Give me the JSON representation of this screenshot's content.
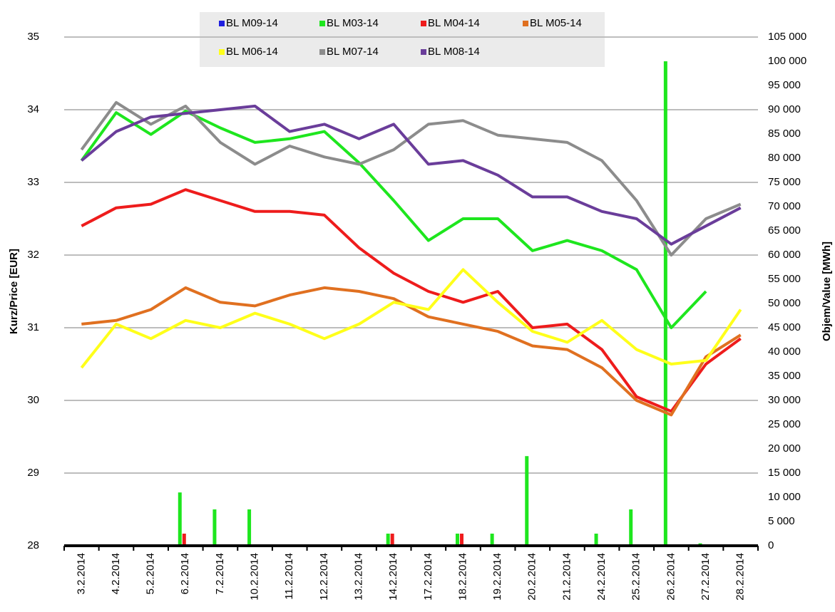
{
  "chart_data": {
    "type": "line-bar",
    "y_label": "Kurz/Price [EUR]",
    "y2_label": "Objem/Value [MWh]",
    "categories": [
      "3.2.2014",
      "4.2.2014",
      "5.2.2014",
      "6.2.2014",
      "7.2.2014",
      "10.2.2014",
      "11.2.2014",
      "12.2.2014",
      "13.2.2014",
      "14.2.2014",
      "17.2.2014",
      "18.2.2014",
      "19.2.2014",
      "20.2.2014",
      "21.2.2014",
      "24.2.2014",
      "25.2.2014",
      "26.2.2014",
      "27.2.2014",
      "28.2.2014"
    ],
    "ylim": [
      28,
      35
    ],
    "yticks": [
      28,
      29,
      30,
      31,
      32,
      33,
      34,
      35
    ],
    "y2lim": [
      0,
      105000
    ],
    "y2ticks": [
      0,
      {
        "value": 5000,
        "label": "5 000"
      },
      {
        "value": 10000,
        "label": "10 000"
      },
      {
        "value": 15000,
        "label": "15 000"
      },
      {
        "value": 20000,
        "label": "20 000"
      },
      {
        "value": 25000,
        "label": "25 000"
      },
      {
        "value": 30000,
        "label": "30 000"
      },
      {
        "value": 35000,
        "label": "35 000"
      },
      {
        "value": 40000,
        "label": "40 000"
      },
      {
        "value": 45000,
        "label": "45 000"
      },
      {
        "value": 50000,
        "label": "50 000"
      },
      {
        "value": 55000,
        "label": "55 000"
      },
      {
        "value": 60000,
        "label": "60 000"
      },
      {
        "value": 65000,
        "label": "65 000"
      },
      {
        "value": 70000,
        "label": "70 000"
      },
      {
        "value": 75000,
        "label": "75 000"
      },
      {
        "value": 80000,
        "label": "80 000"
      },
      {
        "value": 85000,
        "label": "85 000"
      },
      {
        "value": 90000,
        "label": "90 000"
      },
      {
        "value": 95000,
        "label": "95 000"
      },
      {
        "value": 100000,
        "label": "100 000"
      },
      {
        "value": 105000,
        "label": "105 000"
      }
    ],
    "grid": true,
    "series": [
      {
        "name": "BL M09-14",
        "color": "#1f1fdf",
        "values": [
          null,
          null,
          null,
          null,
          null,
          null,
          null,
          null,
          null,
          null,
          null,
          null,
          null,
          null,
          null,
          null,
          null,
          null,
          null,
          null
        ]
      },
      {
        "name": "BL M03-14",
        "color": "#1ee61e",
        "values": [
          33.3,
          33.96,
          33.66,
          33.98,
          33.75,
          33.55,
          33.6,
          33.7,
          33.27,
          32.75,
          32.2,
          32.5,
          32.5,
          32.06,
          32.2,
          32.06,
          31.8,
          31.0,
          31.5,
          null
        ],
        "volumes": [
          null,
          null,
          null,
          11000,
          7500,
          7500,
          null,
          null,
          null,
          2500,
          null,
          2500,
          2500,
          18500,
          null,
          2500,
          7500,
          100000,
          500,
          null
        ],
        "axis": "y2"
      },
      {
        "name": "BL M04-14",
        "color": "#ee1c1c",
        "values": [
          32.4,
          32.65,
          32.7,
          32.9,
          32.75,
          32.6,
          32.6,
          32.55,
          32.1,
          31.75,
          31.5,
          31.35,
          31.5,
          31.0,
          31.05,
          30.7,
          30.05,
          29.85,
          30.5,
          30.85
        ],
        "volumes": [
          null,
          null,
          null,
          2500,
          null,
          null,
          null,
          null,
          null,
          2500,
          null,
          2500,
          null,
          null,
          null,
          null,
          null,
          null,
          null,
          null
        ],
        "axis": "y2"
      },
      {
        "name": "BL M05-14",
        "color": "#e07020",
        "values": [
          31.05,
          31.1,
          31.25,
          31.55,
          31.35,
          31.3,
          31.45,
          31.55,
          31.5,
          31.4,
          31.15,
          31.05,
          30.95,
          30.75,
          30.7,
          30.45,
          30.0,
          29.8,
          30.6,
          30.9
        ]
      },
      {
        "name": "BL M06-14",
        "color": "#ffff1a",
        "values": [
          30.45,
          31.05,
          30.85,
          31.1,
          31.0,
          31.2,
          31.05,
          30.85,
          31.05,
          31.35,
          31.25,
          31.8,
          31.35,
          30.95,
          30.8,
          31.1,
          30.7,
          30.5,
          30.55,
          31.25
        ]
      },
      {
        "name": "BL M07-14",
        "color": "#8c8c8c",
        "values": [
          33.45,
          34.1,
          33.8,
          34.05,
          33.55,
          33.25,
          33.5,
          33.35,
          33.25,
          33.45,
          33.8,
          33.85,
          33.65,
          33.6,
          33.55,
          33.3,
          32.75,
          32.0,
          32.5,
          32.7
        ]
      },
      {
        "name": "BL M08-14",
        "color": "#6a3d9a",
        "values": [
          33.3,
          33.7,
          33.9,
          33.95,
          34.0,
          34.05,
          33.7,
          33.8,
          33.6,
          33.8,
          33.25,
          33.3,
          33.1,
          32.8,
          32.8,
          32.6,
          32.5,
          32.15,
          32.4,
          32.65
        ]
      }
    ]
  }
}
